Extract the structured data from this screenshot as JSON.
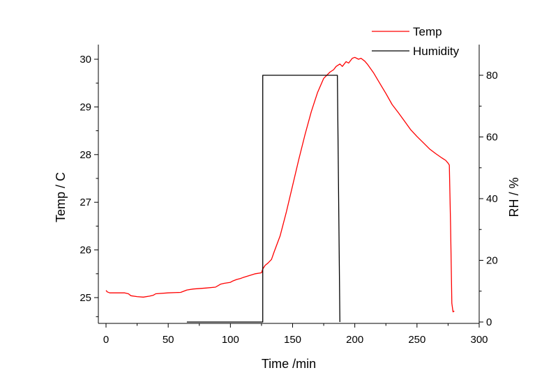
{
  "chart_data": {
    "type": "line",
    "xlabel": "Time /min",
    "ylabel": "Temp / C",
    "y2label": "RH / %",
    "xlim": [
      0,
      300
    ],
    "ylim": [
      24.55,
      30.1
    ],
    "y2lim": [
      0,
      85
    ],
    "x_ticks": [
      0,
      50,
      100,
      150,
      200,
      250,
      300
    ],
    "y_ticks": [
      25,
      26,
      27,
      28,
      29,
      30
    ],
    "y2_ticks": [
      0,
      20,
      40,
      60,
      80
    ],
    "grid": false,
    "legend_position": "top-right",
    "series": [
      {
        "name": "Temp",
        "axis": "left",
        "color": "#ff0000",
        "x": [
          0,
          1,
          3,
          5,
          10,
          15,
          18,
          20,
          25,
          30,
          35,
          38,
          40,
          50,
          60,
          65,
          70,
          80,
          88,
          90,
          92,
          95,
          100,
          102,
          105,
          108,
          110,
          115,
          120,
          125,
          126,
          128,
          130,
          133,
          135,
          140,
          145,
          150,
          155,
          160,
          165,
          170,
          175,
          180,
          183,
          185,
          188,
          190,
          193,
          195,
          198,
          200,
          203,
          205,
          208,
          210,
          215,
          220,
          225,
          230,
          235,
          240,
          245,
          250,
          255,
          260,
          265,
          270,
          273,
          275,
          276,
          277,
          278,
          279,
          280
        ],
        "values": [
          25.15,
          25.12,
          25.1,
          25.1,
          25.1,
          25.1,
          25.08,
          25.04,
          25.02,
          25.01,
          25.03,
          25.05,
          25.08,
          25.1,
          25.11,
          25.16,
          25.18,
          25.2,
          25.22,
          25.25,
          25.28,
          25.3,
          25.32,
          25.35,
          25.38,
          25.4,
          25.42,
          25.46,
          25.5,
          25.52,
          25.6,
          25.68,
          25.72,
          25.8,
          25.95,
          26.3,
          26.8,
          27.35,
          27.9,
          28.42,
          28.9,
          29.3,
          29.6,
          29.73,
          29.78,
          29.85,
          29.9,
          29.85,
          29.95,
          29.92,
          30.02,
          30.04,
          30.0,
          30.02,
          29.96,
          29.9,
          29.72,
          29.5,
          29.28,
          29.05,
          28.88,
          28.7,
          28.52,
          28.38,
          28.25,
          28.12,
          28.02,
          27.93,
          27.88,
          27.82,
          27.78,
          26.5,
          24.88,
          24.7,
          24.72
        ]
      },
      {
        "name": "Humidity",
        "axis": "right",
        "color": "#000000",
        "x": [
          65,
          126,
          126,
          186,
          188
        ],
        "values": [
          0,
          0,
          80,
          80,
          0
        ]
      }
    ]
  }
}
